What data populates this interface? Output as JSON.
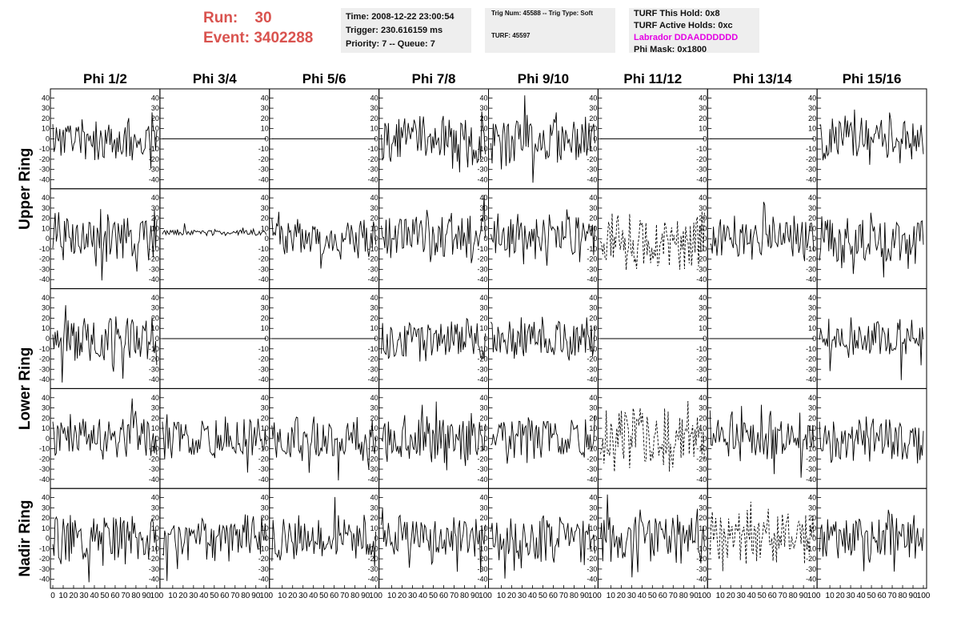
{
  "run_label": "Run:",
  "run_value": "30",
  "event_label": "Event:",
  "event_value": "3402288",
  "info_box_1": {
    "time": "Time: 2008-12-22 23:00:54",
    "trigger": "Trigger: 230.616159 ms",
    "priority_queue": "Priority: 7 -- Queue: 7"
  },
  "info_box_2": {
    "trig_line": "Trig Num: 45588 -- Trig Type: Soft",
    "turf_line": "TURF: 45597"
  },
  "info_box_3": {
    "this_hold": "TURF This Hold: 0x8",
    "active_holds": "TURF Active Holds: 0xc",
    "labrador": "Labrador DDAADDDDDD",
    "phi_mask": "Phi Mask: 0x1800"
  },
  "colors": {
    "run_text": "#d9534f",
    "labrador_text": "#e400e4",
    "info_bg": "#eeeeee",
    "trace": "#000000"
  },
  "chart_data": {
    "type": "line",
    "columns": [
      "Phi 1/2",
      "Phi 3/4",
      "Phi 5/6",
      "Phi 7/8",
      "Phi 9/10",
      "Phi 11/12",
      "Phi 13/14",
      "Phi 15/16"
    ],
    "row_groups": [
      {
        "label": "Upper Ring",
        "rows": [
          0,
          1
        ]
      },
      {
        "label": "Lower Ring",
        "rows": [
          2,
          3
        ]
      },
      {
        "label": "Nadir Ring",
        "rows": [
          4
        ]
      }
    ],
    "ylim": [
      -45,
      45
    ],
    "yticks": [
      40,
      30,
      20,
      10,
      0,
      -10,
      -20,
      -30,
      -40
    ],
    "xlim": [
      0,
      100
    ],
    "xticks": [
      0,
      10,
      20,
      30,
      40,
      50,
      60,
      70,
      80,
      90,
      100
    ],
    "samples": 90,
    "panels": [
      [
        {
          "mode": "noise",
          "amp": 14,
          "seed": 11
        },
        {
          "mode": "flat"
        },
        {
          "mode": "flat"
        },
        {
          "mode": "noise",
          "amp": 15,
          "seed": 13
        },
        {
          "mode": "noise",
          "amp": 15,
          "seed": 14
        },
        {
          "mode": "flat"
        },
        {
          "mode": "flat"
        },
        {
          "mode": "noise",
          "amp": 15,
          "seed": 17
        }
      ],
      [
        {
          "mode": "noise",
          "amp": 16,
          "seed": 21
        },
        {
          "mode": "noise",
          "amp": 2,
          "offset": 6,
          "seed": 22
        },
        {
          "mode": "noise",
          "amp": 13,
          "seed": 23
        },
        {
          "mode": "noise",
          "amp": 15,
          "seed": 24
        },
        {
          "mode": "noise",
          "amp": 15,
          "seed": 25
        },
        {
          "mode": "dashed",
          "amp": 18,
          "seed": 26
        },
        {
          "mode": "noise",
          "amp": 12,
          "seed": 27
        },
        {
          "mode": "noise",
          "amp": 16,
          "seed": 28
        }
      ],
      [
        {
          "mode": "noise",
          "amp": 14,
          "seed": 31
        },
        {
          "mode": "flat"
        },
        {
          "mode": "flat"
        },
        {
          "mode": "noise",
          "amp": 13,
          "seed": 34
        },
        {
          "mode": "noise",
          "amp": 13,
          "seed": 35
        },
        {
          "mode": "flat"
        },
        {
          "mode": "flat"
        },
        {
          "mode": "noise",
          "amp": 12,
          "seed": 38
        }
      ],
      [
        {
          "mode": "noise",
          "amp": 15,
          "seed": 41
        },
        {
          "mode": "noise",
          "amp": 14,
          "seed": 42
        },
        {
          "mode": "noise",
          "amp": 13,
          "seed": 43
        },
        {
          "mode": "noise",
          "amp": 15,
          "seed": 44
        },
        {
          "mode": "noise",
          "amp": 14,
          "seed": 45
        },
        {
          "mode": "dashed",
          "amp": 20,
          "seed": 46
        },
        {
          "mode": "noise",
          "amp": 15,
          "seed": 47
        },
        {
          "mode": "noise",
          "amp": 15,
          "seed": 48
        }
      ],
      [
        {
          "mode": "noise",
          "amp": 16,
          "seed": 51
        },
        {
          "mode": "noise",
          "amp": 13,
          "seed": 52
        },
        {
          "mode": "noise",
          "amp": 14,
          "seed": 53
        },
        {
          "mode": "noise",
          "amp": 13,
          "seed": 54
        },
        {
          "mode": "noise",
          "amp": 14,
          "seed": 55
        },
        {
          "mode": "noise",
          "amp": 16,
          "seed": 56
        },
        {
          "mode": "dashed",
          "amp": 16,
          "seed": 57
        },
        {
          "mode": "noise",
          "amp": 13,
          "seed": 58
        }
      ]
    ]
  }
}
